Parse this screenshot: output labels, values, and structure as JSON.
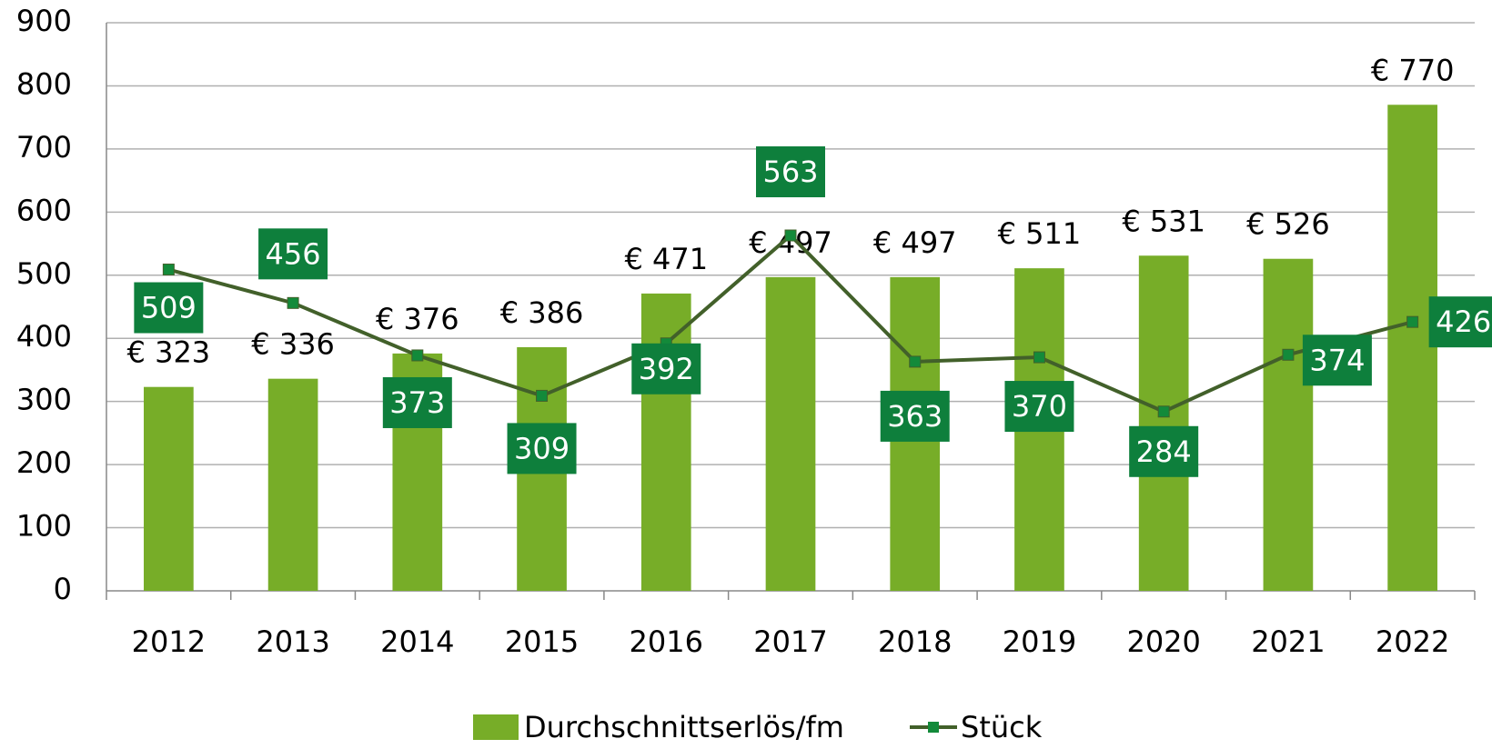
{
  "chart_data": {
    "type": "bar_line",
    "categories": [
      "2012",
      "2013",
      "2014",
      "2015",
      "2016",
      "2017",
      "2018",
      "2019",
      "2020",
      "2021",
      "2022"
    ],
    "series": [
      {
        "name": "Durchschnittserlös/fm",
        "type": "bar",
        "color": "#77ad28",
        "values": [
          323,
          336,
          376,
          386,
          471,
          497,
          497,
          511,
          531,
          526,
          770
        ],
        "value_labels": [
          "€ 323",
          "€ 336",
          "€ 376",
          "€ 386",
          "€ 471",
          "€ 497",
          "€ 497",
          "€ 511",
          "€ 531",
          "€ 526",
          "€ 770"
        ]
      },
      {
        "name": "Stück",
        "type": "line",
        "color": "#42602a",
        "marker_color": "#138a3a",
        "label_box_color": "#0e7f3c",
        "values": [
          509,
          456,
          373,
          309,
          392,
          563,
          363,
          370,
          284,
          374,
          426
        ]
      }
    ],
    "ylim": [
      0,
      900
    ],
    "yticks": [
      0,
      100,
      200,
      300,
      400,
      500,
      600,
      700,
      800,
      900
    ],
    "grid": true,
    "legend": "bottom"
  }
}
